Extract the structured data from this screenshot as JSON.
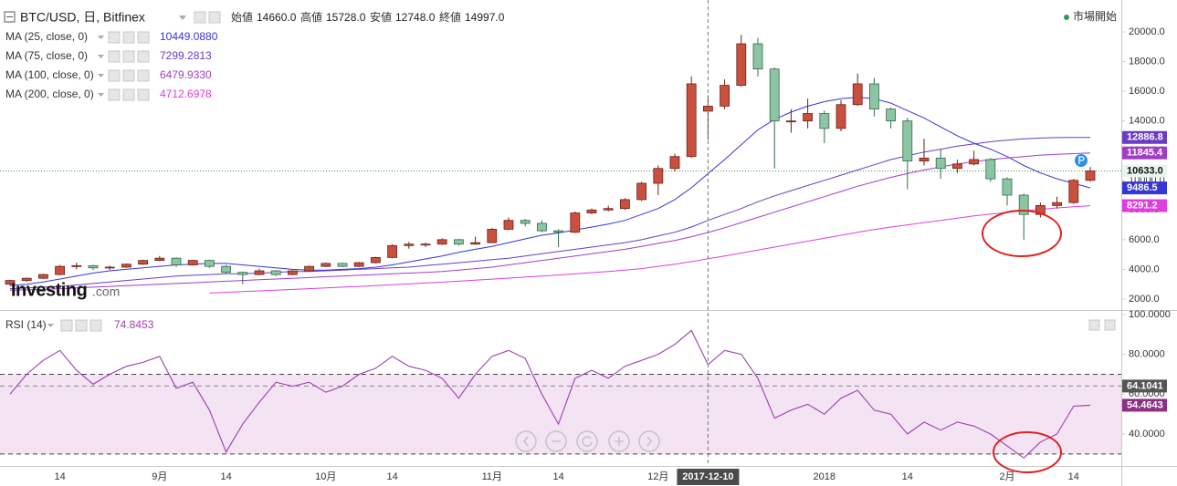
{
  "chart_data": [
    {
      "type": "candlestick",
      "title": "BTC/USD, 日, Bitfinex",
      "ohlc": [
        {
          "label": "始値",
          "text": "14660.0"
        },
        {
          "label": "高値",
          "text": "15728.0"
        },
        {
          "label": "安値",
          "text": "12748.0"
        },
        {
          "label": "終値",
          "text": "14997.0"
        }
      ],
      "status": "市場開始",
      "watermark": "Investing",
      "watermark_suffix": ".com",
      "categories": [
        null,
        null,
        null,
        "14",
        null,
        null,
        null,
        null,
        null,
        "9月",
        null,
        null,
        null,
        "14",
        null,
        null,
        null,
        null,
        null,
        "10月",
        null,
        null,
        null,
        "14",
        null,
        null,
        null,
        null,
        null,
        "11月",
        null,
        null,
        null,
        "14",
        null,
        null,
        null,
        null,
        null,
        "12月",
        null,
        null,
        "2017-12-10",
        null,
        null,
        null,
        null,
        null,
        null,
        "2018",
        null,
        null,
        null,
        null,
        "14",
        null,
        null,
        null,
        null,
        null,
        "2月",
        null,
        null,
        null,
        "14",
        null
      ],
      "open": [
        3000,
        3250,
        3400,
        3650,
        4200,
        4250,
        4100,
        4150,
        4350,
        4600,
        4750,
        4300,
        4600,
        4200,
        3800,
        3650,
        3900,
        3650,
        3900,
        4200,
        4400,
        4200,
        4450,
        4800,
        5600,
        5700,
        5700,
        6000,
        5700,
        5800,
        6700,
        7300,
        7100,
        6600,
        6500,
        7800,
        8000,
        8100,
        8700,
        9800,
        10800,
        11600,
        14660,
        14997,
        16400,
        19200,
        17500,
        14000,
        14000,
        14500,
        13500,
        15100,
        16500,
        14800,
        14000,
        11300,
        11500,
        10800,
        11100,
        11400,
        10100,
        9000,
        7700,
        8300,
        8500,
        10000
      ],
      "high": [
        3300,
        3450,
        3700,
        4300,
        4450,
        4300,
        4250,
        4400,
        4650,
        4900,
        4800,
        4650,
        4650,
        4300,
        3850,
        4050,
        3950,
        3950,
        4250,
        4450,
        4450,
        4500,
        4850,
        5700,
        5850,
        5800,
        6100,
        6050,
        6200,
        6800,
        7500,
        7400,
        7300,
        6700,
        7900,
        8100,
        8300,
        8800,
        9900,
        11000,
        11800,
        17000,
        15728,
        16800,
        19800,
        19600,
        17600,
        14800,
        15500,
        14700,
        15400,
        17200,
        16900,
        14900,
        14200,
        12800,
        12100,
        11400,
        12000,
        11500,
        10200,
        9100,
        8500,
        8900,
        10100,
        10900
      ],
      "low": [
        2900,
        3150,
        3350,
        3600,
        4000,
        3950,
        3950,
        4100,
        4300,
        4550,
        4150,
        4250,
        4100,
        3700,
        3000,
        3600,
        3550,
        3600,
        3850,
        4150,
        4150,
        4150,
        4400,
        4750,
        5400,
        5500,
        5650,
        5600,
        5650,
        5800,
        6650,
        6900,
        6500,
        5500,
        6450,
        7700,
        7900,
        8000,
        8600,
        9000,
        10600,
        11500,
        12748,
        14800,
        16300,
        17000,
        10800,
        13200,
        13500,
        12500,
        13300,
        15000,
        14300,
        13500,
        9400,
        11000,
        10100,
        10500,
        11000,
        9900,
        8300,
        6000,
        7500,
        8100,
        8400,
        9900
      ],
      "close": [
        3250,
        3400,
        3650,
        4200,
        4250,
        4100,
        4150,
        4350,
        4600,
        4750,
        4300,
        4600,
        4200,
        3800,
        3650,
        3900,
        3650,
        3900,
        4200,
        4400,
        4200,
        4450,
        4800,
        5600,
        5700,
        5700,
        6000,
        5700,
        5800,
        6700,
        7300,
        7100,
        6600,
        6500,
        7800,
        8000,
        8100,
        8700,
        9800,
        10800,
        11600,
        16500,
        14997,
        16400,
        19200,
        17500,
        14000,
        14000,
        14500,
        13500,
        15100,
        16500,
        14800,
        14000,
        11300,
        11500,
        10800,
        11100,
        11400,
        10100,
        9000,
        7700,
        8300,
        8500,
        10000,
        10633
      ],
      "last_price_label": "10633.0",
      "up_color": "#c9503e",
      "up_stroke": "#6e2218",
      "down_color": "#8cc4a4",
      "down_stroke": "#2f6b4a",
      "price_line_color": "#3a9a5a",
      "series": [
        {
          "name": "MA (25, close, 0)",
          "color": "#3535d8",
          "cursor_label": "10449.0880",
          "values": [
            2900,
            3000,
            3150,
            3350,
            3550,
            3750,
            3900,
            4000,
            4100,
            4200,
            4300,
            4350,
            4400,
            4400,
            4300,
            4200,
            4100,
            4000,
            3950,
            3950,
            4000,
            4050,
            4150,
            4300,
            4500,
            4700,
            4900,
            5150,
            5350,
            5550,
            5800,
            6050,
            6300,
            6450,
            6650,
            6850,
            7050,
            7300,
            7700,
            8100,
            8700,
            9500,
            10449.088,
            11400,
            12400,
            13400,
            14100,
            14600,
            15000,
            15300,
            15500,
            15600,
            15500,
            15200,
            14700,
            14200,
            13600,
            13000,
            12500,
            12100,
            11600,
            11000,
            10500,
            10100,
            9800,
            9486.5
          ]
        },
        {
          "name": "MA (75, close, 0)",
          "color": "#6a3cc4",
          "cursor_label": "7299.2813",
          "values": [
            2700,
            2750,
            2800,
            2850,
            2950,
            3050,
            3150,
            3250,
            3350,
            3450,
            3550,
            3600,
            3650,
            3700,
            3700,
            3750,
            3800,
            3850,
            3850,
            3900,
            3950,
            4000,
            4050,
            4100,
            4150,
            4250,
            4350,
            4450,
            4550,
            4650,
            4750,
            4900,
            5050,
            5200,
            5350,
            5500,
            5650,
            5800,
            6000,
            6250,
            6500,
            6850,
            7299.2813,
            7700,
            8100,
            8550,
            8950,
            9300,
            9650,
            10000,
            10350,
            10700,
            11050,
            11400,
            11650,
            11900,
            12100,
            12300,
            12450,
            12600,
            12700,
            12800,
            12850,
            12880,
            12890,
            12886.8
          ]
        },
        {
          "name": "MA (100, close, 0)",
          "color": "#a23cc8",
          "cursor_label": "6479.9330",
          "values": [
            2600,
            2620,
            2650,
            2700,
            2750,
            2800,
            2850,
            2900,
            2950,
            3000,
            3050,
            3100,
            3150,
            3200,
            3250,
            3300,
            3350,
            3400,
            3450,
            3500,
            3550,
            3600,
            3650,
            3700,
            3750,
            3800,
            3850,
            3950,
            4050,
            4150,
            4300,
            4450,
            4600,
            4750,
            4900,
            5050,
            5200,
            5350,
            5550,
            5750,
            5950,
            6200,
            6479.933,
            6800,
            7150,
            7500,
            7850,
            8200,
            8550,
            8900,
            9250,
            9600,
            9900,
            10200,
            10450,
            10700,
            10900,
            11100,
            11250,
            11400,
            11500,
            11600,
            11700,
            11750,
            11800,
            11845.4
          ]
        },
        {
          "name": "MA (200, close, 0)",
          "color": "#de3ede",
          "cursor_label": "4712.6978",
          "values": [
            null,
            null,
            null,
            null,
            null,
            null,
            null,
            null,
            null,
            null,
            null,
            null,
            2400,
            2450,
            2500,
            2550,
            2600,
            2650,
            2700,
            2750,
            2800,
            2850,
            2900,
            2960,
            3020,
            3080,
            3140,
            3200,
            3270,
            3340,
            3410,
            3480,
            3550,
            3620,
            3700,
            3780,
            3860,
            3950,
            4050,
            4200,
            4350,
            4520,
            4712.6978,
            4900,
            5100,
            5300,
            5500,
            5700,
            5900,
            6100,
            6300,
            6500,
            6680,
            6850,
            7000,
            7150,
            7300,
            7450,
            7600,
            7720,
            7840,
            7950,
            8050,
            8140,
            8220,
            8291.2
          ]
        }
      ],
      "ylim": [
        1260,
        22150
      ],
      "yticks": [
        {
          "value": 2000,
          "label": "2000.0"
        },
        {
          "value": 4000,
          "label": "4000.0"
        },
        {
          "value": 6000,
          "label": "6000.0"
        },
        {
          "value": 8000,
          "label": "8000.0"
        },
        {
          "value": 10000,
          "label": "10000.0"
        },
        {
          "value": 12000,
          "label": "12000.0"
        },
        {
          "value": 14000,
          "label": "14000.0"
        },
        {
          "value": 16000,
          "label": "16000.0"
        },
        {
          "value": 18000,
          "label": "18000.0"
        },
        {
          "value": 20000,
          "label": "20000.0"
        }
      ]
    },
    {
      "type": "line",
      "series": [
        {
          "name": "RSI (14)",
          "color": "#9c3fb0",
          "values": [
            60,
            70,
            77,
            82,
            72,
            65,
            70,
            74,
            76,
            79,
            63,
            66,
            52,
            31,
            45,
            56,
            66,
            64,
            66,
            61,
            64,
            70,
            73,
            79,
            74,
            72,
            68,
            58,
            70,
            79,
            82,
            78,
            60,
            45,
            68,
            72,
            68,
            74,
            77,
            80,
            85,
            92,
            74.8453,
            82,
            80,
            68,
            48,
            52,
            55,
            50,
            58,
            62,
            52,
            50,
            40,
            46,
            42,
            46,
            44,
            40,
            34,
            28,
            36,
            40,
            54,
            54.4643
          ]
        }
      ],
      "band": [
        30,
        70
      ],
      "band_color": "#f3e3f3",
      "level": 64.1041,
      "ylim": [
        24,
        101.8
      ],
      "yticks": [
        {
          "value": 100,
          "label": "100.0000"
        },
        {
          "value": 80,
          "label": "80.0000"
        },
        {
          "value": 60,
          "label": "60.0000"
        },
        {
          "value": 40,
          "label": "40.0000"
        }
      ]
    }
  ]
}
